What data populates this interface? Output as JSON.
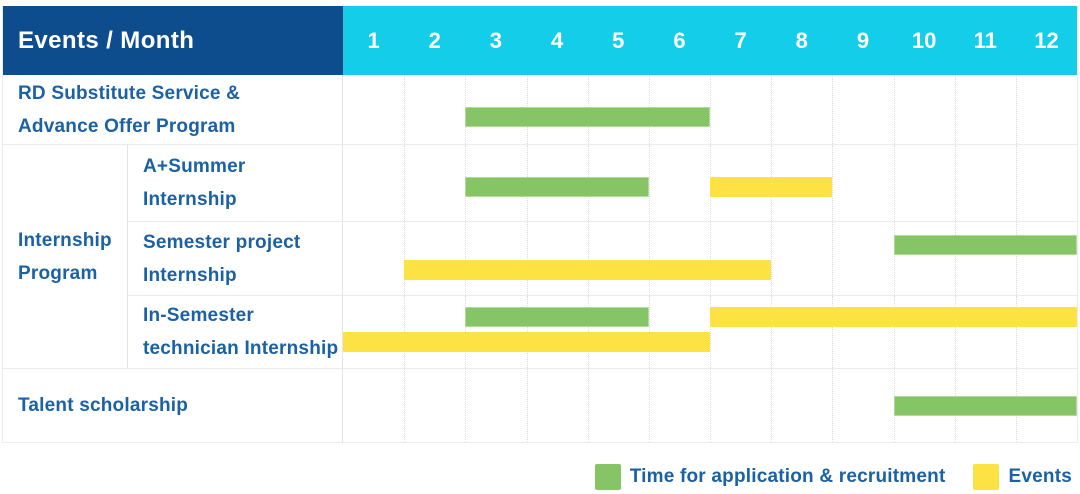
{
  "header": {
    "label": "Events / Month",
    "months": [
      "1",
      "2",
      "3",
      "4",
      "5",
      "6",
      "7",
      "8",
      "9",
      "10",
      "11",
      "12"
    ]
  },
  "legend": {
    "application_label": "Time for application & recruitment",
    "events_label": "Events"
  },
  "colors": {
    "header_bg": "#0e4d8d",
    "months_bg": "#14cde8",
    "application": "#86c566",
    "events": "#fde244",
    "label_text": "#1a61a5",
    "header_text": "#ffffff"
  },
  "chart_data": {
    "type": "gantt",
    "x_unit": "month",
    "x_range": [
      1,
      12
    ],
    "grid": "dotted-monthly",
    "legend_position": "bottom-right",
    "series_legend": {
      "application": "Time for application & recruitment",
      "events": "Events"
    },
    "rows": [
      {
        "group": null,
        "label": "RD Substitute Service & Advance Offer Program",
        "label_lines": [
          "RD Substitute Service &",
          "Advance Offer Program"
        ],
        "tracks": [
          [
            {
              "series": "application",
              "start_month": 3,
              "end_month": 6
            }
          ]
        ]
      },
      {
        "group": "Internship Program",
        "label": "A+Summer Internship",
        "label_lines": [
          "A+Summer",
          "Internship"
        ],
        "tracks": [
          [
            {
              "series": "application",
              "start_month": 3,
              "end_month": 5
            },
            {
              "series": "events",
              "start_month": 7,
              "end_month": 8
            }
          ]
        ]
      },
      {
        "group": "Internship Program",
        "label": "Semester project Internship",
        "label_lines": [
          "Semester project",
          "Internship"
        ],
        "tracks": [
          [
            {
              "series": "application",
              "start_month": 10,
              "end_month": 12
            }
          ],
          [
            {
              "series": "events",
              "start_month": 2,
              "end_month": 7
            }
          ]
        ]
      },
      {
        "group": "Internship Program",
        "label": "In-Semester technician Internship",
        "label_lines": [
          "In-Semester",
          "technician Internship"
        ],
        "tracks": [
          [
            {
              "series": "application",
              "start_month": 3,
              "end_month": 5
            },
            {
              "series": "events",
              "start_month": 7,
              "end_month": 12
            }
          ],
          [
            {
              "series": "events",
              "start_month": 1,
              "end_month": 6
            }
          ]
        ]
      },
      {
        "group": null,
        "label": "Talent scholarship",
        "label_lines": [
          "Talent scholarship"
        ],
        "tracks": [
          [
            {
              "series": "application",
              "start_month": 10,
              "end_month": 12
            }
          ]
        ]
      }
    ],
    "group_label_lines": [
      "Internship",
      "Program"
    ]
  }
}
